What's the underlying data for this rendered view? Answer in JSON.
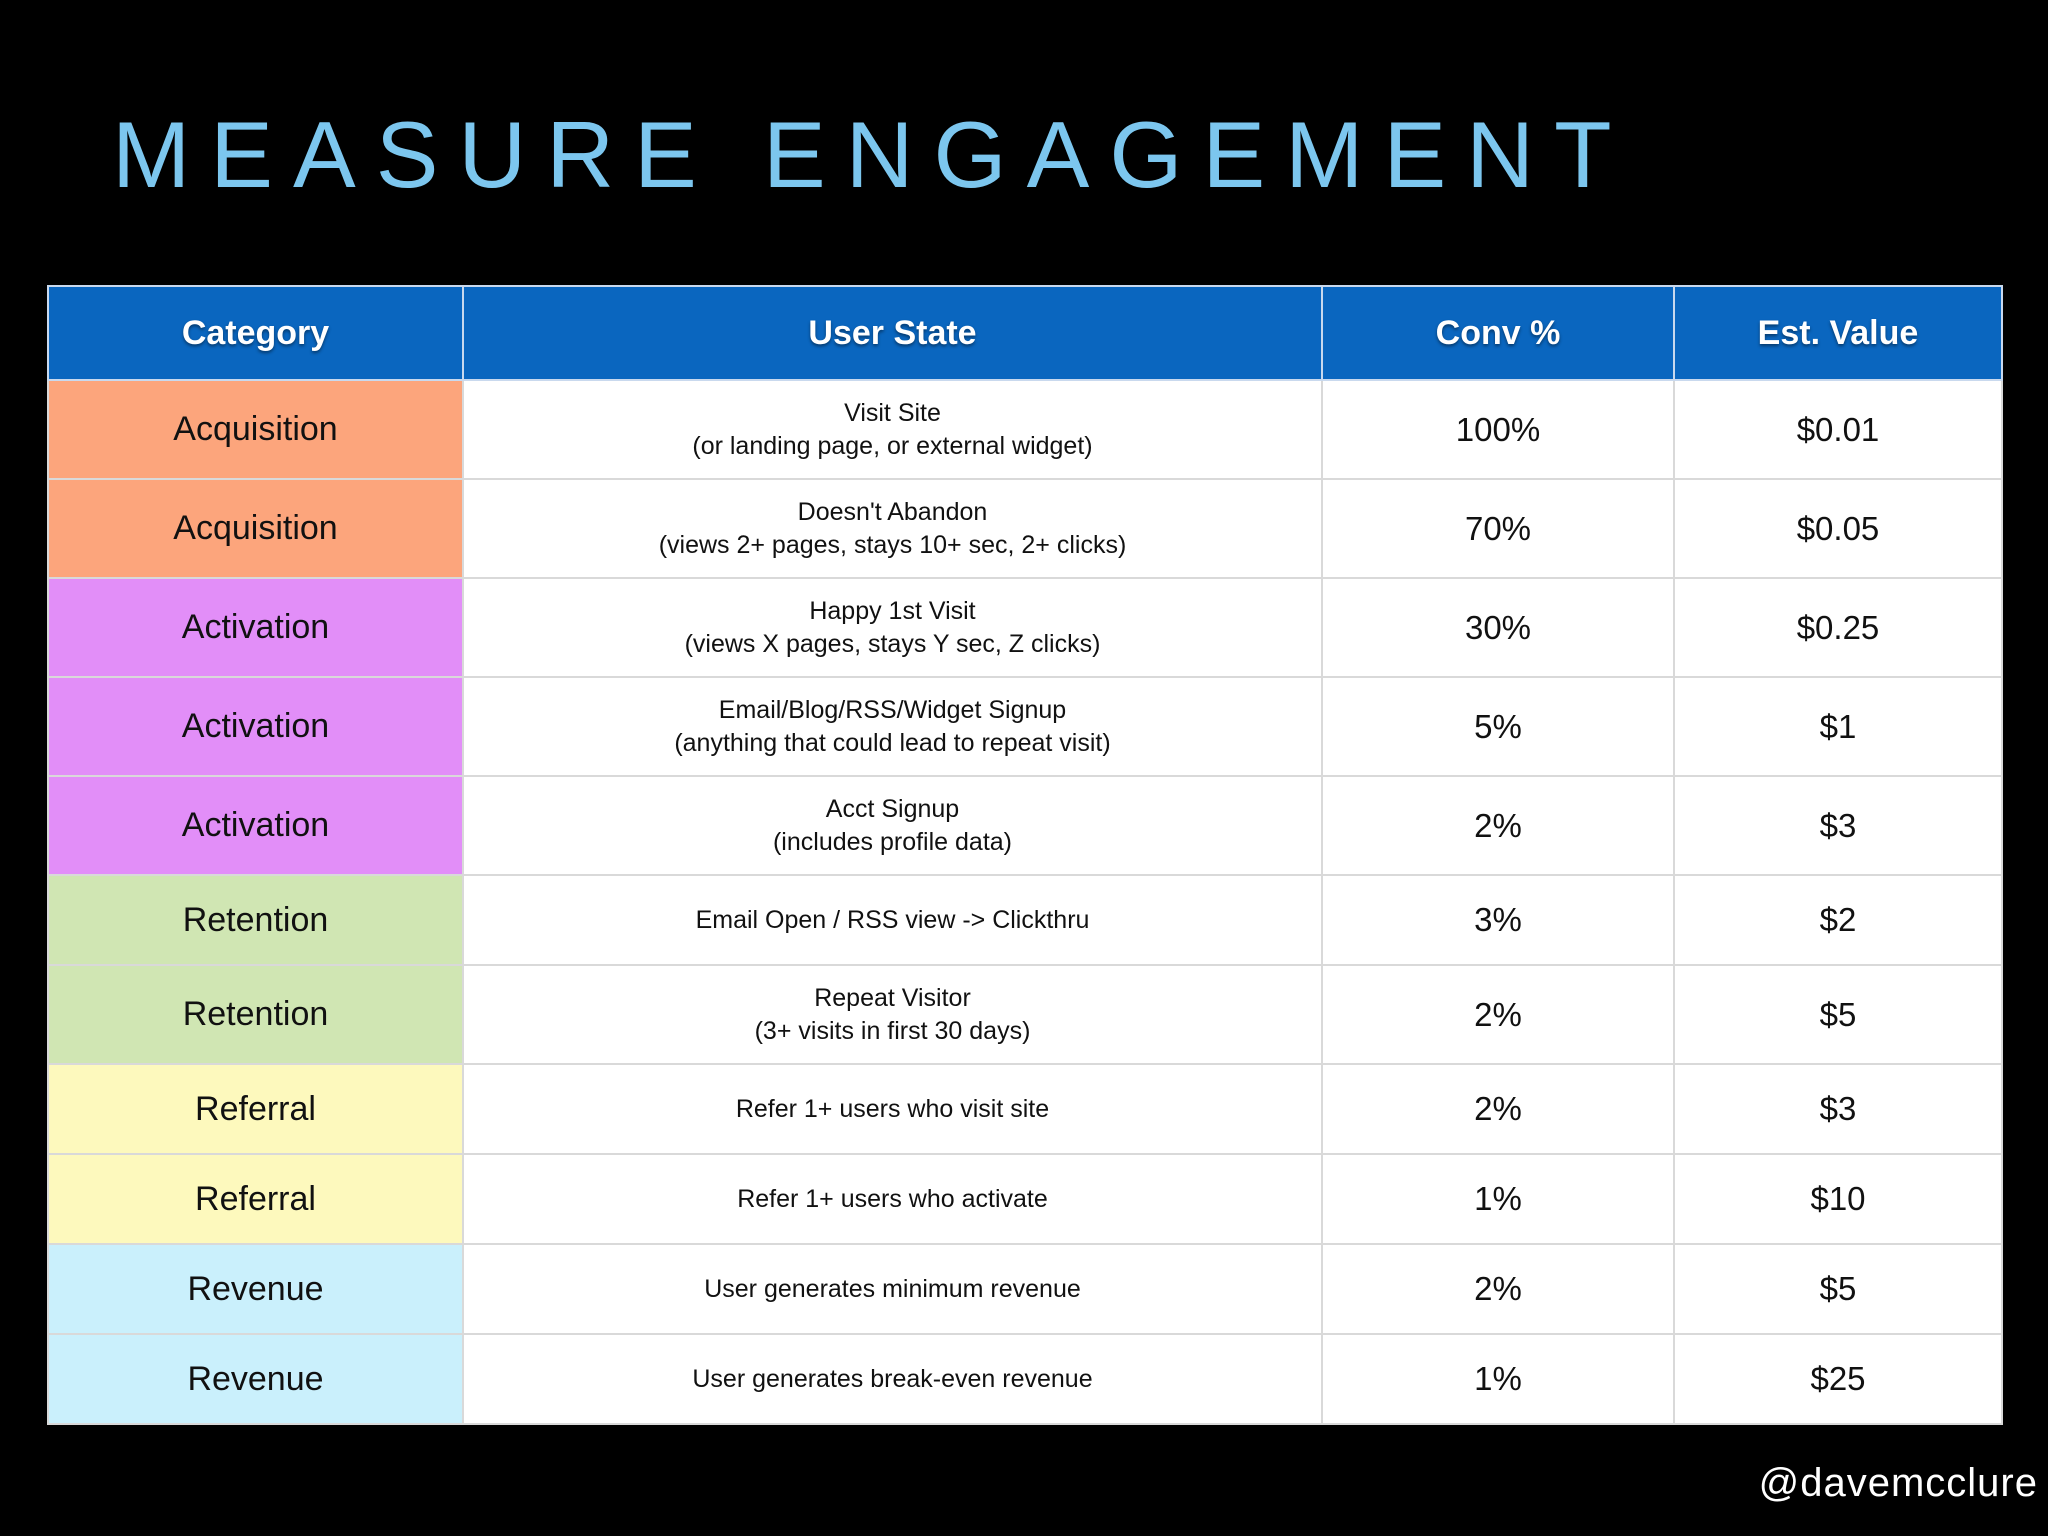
{
  "title": "MEASURE ENGAGEMENT",
  "colors": {
    "title": "#7cc6ee",
    "header_bg": "#0a66bf",
    "acquisition": "#fca57c",
    "activation": "#e28ef8",
    "retention": "#d0e6b3",
    "referral": "#fdf9bd",
    "revenue": "#caf0fc"
  },
  "table": {
    "headers": [
      "Category",
      "User State",
      "Conv %",
      "Est. Value"
    ],
    "rows": [
      {
        "category": "Acquisition",
        "state": "Visit Site",
        "state_note": "(or landing page, or external widget)",
        "conv": "100%",
        "value": "$0.01"
      },
      {
        "category": "Acquisition",
        "state": "Doesn't Abandon",
        "state_note": "(views 2+ pages, stays 10+ sec, 2+ clicks)",
        "conv": "70%",
        "value": "$0.05"
      },
      {
        "category": "Activation",
        "state": "Happy 1st Visit",
        "state_note": "(views X pages, stays Y sec, Z clicks)",
        "conv": "30%",
        "value": "$0.25"
      },
      {
        "category": "Activation",
        "state": "Email/Blog/RSS/Widget Signup",
        "state_note": "(anything that could lead to repeat visit)",
        "conv": "5%",
        "value": "$1"
      },
      {
        "category": "Activation",
        "state": "Acct Signup",
        "state_note": "(includes profile data)",
        "conv": "2%",
        "value": "$3"
      },
      {
        "category": "Retention",
        "state": "Email Open / RSS view -> Clickthru",
        "state_note": "",
        "conv": "3%",
        "value": "$2"
      },
      {
        "category": "Retention",
        "state": "Repeat Visitor",
        "state_note": "(3+ visits in first 30 days)",
        "conv": "2%",
        "value": "$5"
      },
      {
        "category": "Referral",
        "state": "Refer 1+ users who visit site",
        "state_note": "",
        "conv": "2%",
        "value": "$3"
      },
      {
        "category": "Referral",
        "state": "Refer 1+ users who activate",
        "state_note": "",
        "conv": "1%",
        "value": "$10"
      },
      {
        "category": "Revenue",
        "state": "User generates minimum revenue",
        "state_note": "",
        "conv": "2%",
        "value": "$5"
      },
      {
        "category": "Revenue",
        "state": "User generates break-even revenue",
        "state_note": "",
        "conv": "1%",
        "value": "$25"
      }
    ]
  },
  "handle": "@davemcclure"
}
